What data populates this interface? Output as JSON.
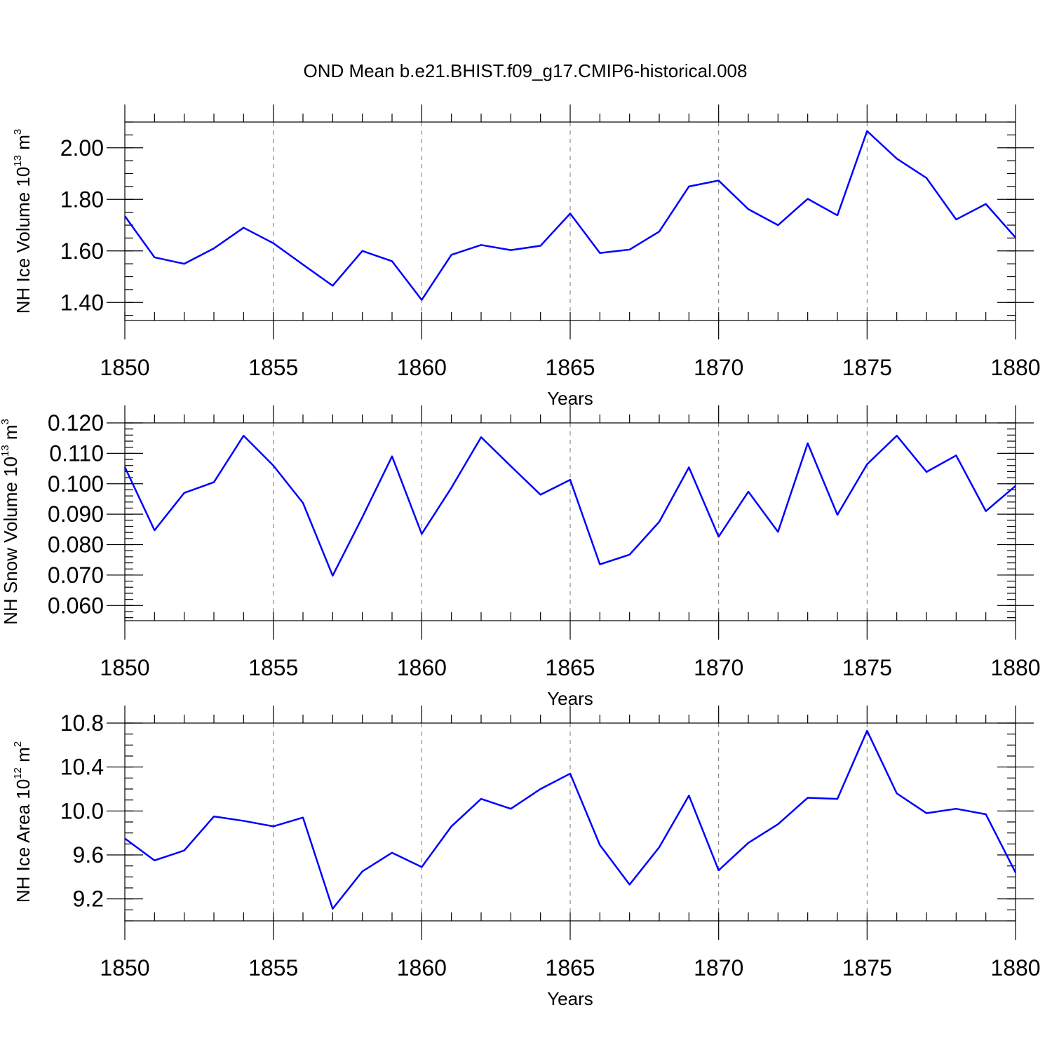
{
  "title": "OND Mean b.e21.BHIST.f09_g17.CMIP6-historical.008",
  "chart_data": [
    {
      "type": "line",
      "title": "OND Mean b.e21.BHIST.f09_g17.CMIP6-historical.008",
      "xlabel": "Years",
      "ylabel": {
        "text": "NH Ice Volume 10",
        "sup1": "13",
        "mid": " m",
        "sup2": "3"
      },
      "xlim": [
        1850,
        1880
      ],
      "ylim": [
        1.33,
        2.1
      ],
      "x_ticks": [
        1850,
        1855,
        1860,
        1865,
        1870,
        1875,
        1880
      ],
      "x_tick_labels": [
        "1850",
        "1855",
        "1860",
        "1865",
        "1870",
        "1875",
        "1880"
      ],
      "y_ticks": [
        1.4,
        1.6,
        1.8,
        2.0
      ],
      "y_tick_labels": [
        "1.40",
        "1.60",
        "1.80",
        "2.00"
      ],
      "y_minor_step": 0.05,
      "grid": "vertical dashed at major x ticks",
      "series": [
        {
          "name": "NH Ice Volume",
          "color": "#0000ff",
          "x": [
            1850,
            1851,
            1852,
            1853,
            1854,
            1855,
            1856,
            1857,
            1858,
            1859,
            1860,
            1861,
            1862,
            1863,
            1864,
            1865,
            1866,
            1867,
            1868,
            1869,
            1870,
            1871,
            1872,
            1873,
            1874,
            1875,
            1876,
            1877,
            1878,
            1879,
            1880
          ],
          "values": [
            1.735,
            1.575,
            1.55,
            1.61,
            1.69,
            1.63,
            1.547,
            1.465,
            1.6,
            1.56,
            1.41,
            1.585,
            1.623,
            1.603,
            1.62,
            1.745,
            1.592,
            1.605,
            1.675,
            1.85,
            1.873,
            1.762,
            1.7,
            1.802,
            1.738,
            2.065,
            1.958,
            1.883,
            1.722,
            1.782,
            1.652
          ]
        }
      ]
    },
    {
      "type": "line",
      "title": "",
      "xlabel": "Years",
      "ylabel": {
        "text": "NH Snow Volume 10",
        "sup1": "13",
        "mid": " m",
        "sup2": "3"
      },
      "xlim": [
        1850,
        1880
      ],
      "ylim": [
        0.055,
        0.12
      ],
      "x_ticks": [
        1850,
        1855,
        1860,
        1865,
        1870,
        1875,
        1880
      ],
      "x_tick_labels": [
        "1850",
        "1855",
        "1860",
        "1865",
        "1870",
        "1875",
        "1880"
      ],
      "y_ticks": [
        0.06,
        0.07,
        0.08,
        0.09,
        0.1,
        0.11,
        0.12
      ],
      "y_tick_labels": [
        "0.060",
        "0.070",
        "0.080",
        "0.090",
        "0.100",
        "0.110",
        "0.120"
      ],
      "y_minor_step": 0.002,
      "grid": "vertical dashed at major x ticks",
      "series": [
        {
          "name": "NH Snow Volume",
          "color": "#0000ff",
          "x": [
            1850,
            1851,
            1852,
            1853,
            1854,
            1855,
            1856,
            1857,
            1858,
            1859,
            1860,
            1861,
            1862,
            1863,
            1864,
            1865,
            1866,
            1867,
            1868,
            1869,
            1870,
            1871,
            1872,
            1873,
            1874,
            1875,
            1876,
            1877,
            1878,
            1879,
            1880
          ],
          "values": [
            0.1055,
            0.0847,
            0.097,
            0.1005,
            0.1158,
            0.106,
            0.0937,
            0.0698,
            0.089,
            0.109,
            0.0835,
            0.0987,
            0.1153,
            0.1058,
            0.0964,
            0.1013,
            0.0735,
            0.0767,
            0.0875,
            0.1054,
            0.0826,
            0.0974,
            0.0842,
            0.1133,
            0.0898,
            0.1064,
            0.1158,
            0.1039,
            0.1093,
            0.091,
            0.0993
          ]
        }
      ]
    },
    {
      "type": "line",
      "title": "",
      "xlabel": "Years",
      "ylabel": {
        "text": "NH Ice Area 10",
        "sup1": "12",
        "mid": " m",
        "sup2": "2"
      },
      "xlim": [
        1850,
        1880
      ],
      "ylim": [
        9.0,
        10.8
      ],
      "x_ticks": [
        1850,
        1855,
        1860,
        1865,
        1870,
        1875,
        1880
      ],
      "x_tick_labels": [
        "1850",
        "1855",
        "1860",
        "1865",
        "1870",
        "1875",
        "1880"
      ],
      "y_ticks": [
        9.2,
        9.6,
        10.0,
        10.4,
        10.8
      ],
      "y_tick_labels": [
        "9.2",
        "9.6",
        "10.0",
        "10.4",
        "10.8"
      ],
      "y_minor_step": 0.1,
      "grid": "vertical dashed at major x ticks",
      "series": [
        {
          "name": "NH Ice Area",
          "color": "#0000ff",
          "x": [
            1850,
            1851,
            1852,
            1853,
            1854,
            1855,
            1856,
            1857,
            1858,
            1859,
            1860,
            1861,
            1862,
            1863,
            1864,
            1865,
            1866,
            1867,
            1868,
            1869,
            1870,
            1871,
            1872,
            1873,
            1874,
            1875,
            1876,
            1877,
            1878,
            1879,
            1880
          ],
          "values": [
            9.75,
            9.55,
            9.64,
            9.95,
            9.91,
            9.86,
            9.94,
            9.11,
            9.45,
            9.62,
            9.49,
            9.86,
            10.11,
            10.02,
            10.2,
            10.34,
            9.69,
            9.33,
            9.67,
            10.14,
            9.46,
            9.71,
            9.88,
            10.12,
            10.11,
            10.73,
            10.16,
            9.98,
            10.02,
            9.97,
            9.44
          ]
        }
      ]
    }
  ]
}
